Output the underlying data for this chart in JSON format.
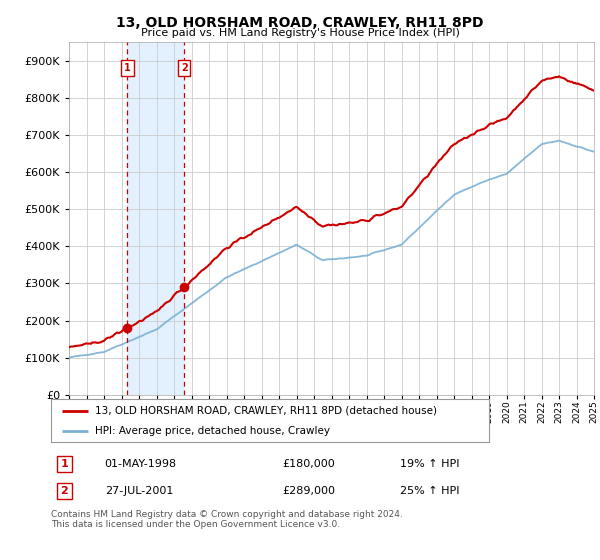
{
  "title": "13, OLD HORSHAM ROAD, CRAWLEY, RH11 8PD",
  "subtitle": "Price paid vs. HM Land Registry's House Price Index (HPI)",
  "ylim": [
    0,
    950000
  ],
  "yticks": [
    0,
    100000,
    200000,
    300000,
    400000,
    500000,
    600000,
    700000,
    800000,
    900000
  ],
  "ytick_labels": [
    "£0",
    "£100K",
    "£200K",
    "£300K",
    "£400K",
    "£500K",
    "£600K",
    "£700K",
    "£800K",
    "£900K"
  ],
  "background_color": "#ffffff",
  "grid_color": "#cccccc",
  "legend_label_red": "13, OLD HORSHAM ROAD, CRAWLEY, RH11 8PD (detached house)",
  "legend_label_blue": "HPI: Average price, detached house, Crawley",
  "red_color": "#cc0000",
  "blue_color": "#7ab0d4",
  "transaction1_date": "01-MAY-1998",
  "transaction1_price": "£180,000",
  "transaction1_hpi": "19% ↑ HPI",
  "transaction2_date": "27-JUL-2001",
  "transaction2_price": "£289,000",
  "transaction2_hpi": "25% ↑ HPI",
  "footer": "Contains HM Land Registry data © Crown copyright and database right 2024.\nThis data is licensed under the Open Government Licence v3.0.",
  "x_start_year": 1995,
  "x_end_year": 2025,
  "shaded_region_color": "#ddeeff",
  "marker1_year": 1998.33,
  "marker1_value": 180000,
  "marker2_year": 2001.58,
  "marker2_value": 289000
}
